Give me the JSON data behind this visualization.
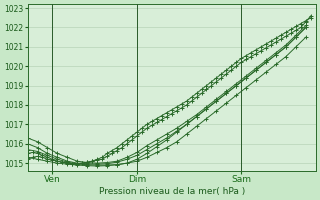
{
  "title": "",
  "xlabel": "Pression niveau de la mer( hPa )",
  "bg_color": "#c8e8c8",
  "plot_bg_color": "#d8eed8",
  "grid_color": "#b0ccb0",
  "line_color": "#2a6a2a",
  "marker_color": "#2a6a2a",
  "ylim": [
    1014.6,
    1023.2
  ],
  "yticks": [
    1015,
    1016,
    1017,
    1018,
    1019,
    1020,
    1021,
    1022,
    1023
  ],
  "xtick_labels": [
    "Ven",
    "Dim",
    "Sam"
  ],
  "vline_x": [
    5,
    22,
    43
  ],
  "xlim": [
    0,
    58
  ],
  "xtick_x": [
    5,
    22,
    43
  ],
  "series": [
    {
      "x": [
        0,
        1,
        2,
        3,
        4,
        5,
        6,
        7,
        8,
        9,
        10,
        11,
        12,
        13,
        14,
        15,
        16,
        17,
        18,
        19,
        20,
        21,
        22,
        23,
        24,
        25,
        26,
        27,
        28,
        29,
        30,
        31,
        32,
        33,
        34,
        35,
        36,
        37,
        38,
        39,
        40,
        41,
        42,
        43,
        44,
        45,
        46,
        47,
        48,
        49,
        50,
        51,
        52,
        53,
        54,
        55,
        56,
        57
      ],
      "y": [
        1015.2,
        1015.3,
        1015.35,
        1015.3,
        1015.2,
        1015.15,
        1015.1,
        1015.05,
        1015.0,
        1014.98,
        1014.97,
        1015.0,
        1015.05,
        1015.1,
        1015.2,
        1015.3,
        1015.5,
        1015.65,
        1015.8,
        1016.0,
        1016.2,
        1016.4,
        1016.6,
        1016.8,
        1017.0,
        1017.15,
        1017.3,
        1017.45,
        1017.6,
        1017.75,
        1017.9,
        1018.05,
        1018.2,
        1018.4,
        1018.6,
        1018.8,
        1019.0,
        1019.2,
        1019.4,
        1019.6,
        1019.8,
        1020.0,
        1020.2,
        1020.4,
        1020.55,
        1020.7,
        1020.85,
        1021.0,
        1021.15,
        1021.3,
        1021.45,
        1021.6,
        1021.75,
        1021.9,
        1022.05,
        1022.2,
        1022.35,
        1022.5
      ],
      "marker": "+"
    },
    {
      "x": [
        0,
        1,
        2,
        3,
        4,
        5,
        6,
        7,
        8,
        9,
        10,
        11,
        12,
        13,
        14,
        15,
        16,
        17,
        18,
        19,
        20,
        21,
        22,
        23,
        24,
        25,
        26,
        27,
        28,
        29,
        30,
        31,
        32,
        33,
        34,
        35,
        36,
        37,
        38,
        39,
        40,
        41,
        42,
        43,
        44,
        45,
        46,
        47,
        48,
        49,
        50,
        51,
        52,
        53,
        54,
        55,
        56,
        57
      ],
      "y": [
        1015.5,
        1015.55,
        1015.5,
        1015.4,
        1015.3,
        1015.2,
        1015.1,
        1015.05,
        1015.0,
        1014.98,
        1014.97,
        1015.0,
        1015.05,
        1015.1,
        1015.15,
        1015.2,
        1015.35,
        1015.5,
        1015.65,
        1015.8,
        1016.0,
        1016.2,
        1016.4,
        1016.6,
        1016.8,
        1016.95,
        1017.1,
        1017.25,
        1017.4,
        1017.55,
        1017.7,
        1017.85,
        1018.0,
        1018.2,
        1018.4,
        1018.6,
        1018.8,
        1019.0,
        1019.2,
        1019.4,
        1019.6,
        1019.8,
        1020.0,
        1020.2,
        1020.35,
        1020.5,
        1020.65,
        1020.8,
        1020.95,
        1021.1,
        1021.25,
        1021.4,
        1021.55,
        1021.7,
        1021.85,
        1022.0,
        1022.3,
        1022.6
      ],
      "marker": "+"
    },
    {
      "x": [
        0,
        2,
        4,
        6,
        8,
        10,
        12,
        14,
        16,
        18,
        20,
        22,
        24,
        26,
        28,
        30,
        32,
        34,
        36,
        38,
        40,
        42,
        44,
        46,
        48,
        50,
        52,
        54,
        56
      ],
      "y": [
        1015.7,
        1015.6,
        1015.4,
        1015.2,
        1015.05,
        1014.95,
        1014.92,
        1014.9,
        1014.9,
        1014.92,
        1015.0,
        1015.1,
        1015.3,
        1015.55,
        1015.8,
        1016.1,
        1016.5,
        1016.9,
        1017.3,
        1017.7,
        1018.1,
        1018.5,
        1018.9,
        1019.3,
        1019.7,
        1020.1,
        1020.5,
        1021.0,
        1021.5
      ],
      "marker": "+"
    },
    {
      "x": [
        0,
        2,
        4,
        6,
        8,
        10,
        12,
        14,
        16,
        18,
        20,
        22,
        24,
        26,
        28,
        30,
        32,
        34,
        36,
        38,
        40,
        42,
        44,
        46,
        48,
        50,
        52,
        54,
        56
      ],
      "y": [
        1015.3,
        1015.2,
        1015.1,
        1015.0,
        1014.95,
        1014.9,
        1014.87,
        1014.85,
        1014.87,
        1014.92,
        1015.0,
        1015.2,
        1015.5,
        1015.85,
        1016.2,
        1016.6,
        1017.0,
        1017.4,
        1017.8,
        1018.2,
        1018.6,
        1019.0,
        1019.4,
        1019.8,
        1020.2,
        1020.6,
        1021.0,
        1021.5,
        1022.0
      ],
      "marker": "+"
    },
    {
      "x": [
        0,
        2,
        4,
        6,
        8,
        10,
        12,
        14,
        16,
        18,
        20,
        22,
        24,
        26,
        28,
        30,
        32,
        34,
        36,
        38,
        40,
        42,
        44,
        46,
        48,
        50,
        52,
        54,
        56
      ],
      "y": [
        1016.0,
        1015.8,
        1015.5,
        1015.3,
        1015.1,
        1015.0,
        1014.97,
        1014.95,
        1014.97,
        1015.05,
        1015.2,
        1015.4,
        1015.7,
        1016.0,
        1016.3,
        1016.65,
        1017.0,
        1017.4,
        1017.8,
        1018.2,
        1018.6,
        1019.0,
        1019.4,
        1019.8,
        1020.2,
        1020.6,
        1021.0,
        1021.5,
        1022.0
      ],
      "marker": "+"
    },
    {
      "x": [
        0,
        2,
        4,
        6,
        8,
        10,
        12,
        14,
        16,
        18,
        20,
        22,
        24,
        26,
        28,
        30,
        32,
        34,
        36,
        38,
        40,
        42,
        44,
        46,
        48,
        50,
        52,
        54,
        56
      ],
      "y": [
        1016.3,
        1016.1,
        1015.8,
        1015.5,
        1015.3,
        1015.1,
        1015.03,
        1015.0,
        1015.03,
        1015.1,
        1015.3,
        1015.55,
        1015.9,
        1016.2,
        1016.5,
        1016.8,
        1017.15,
        1017.5,
        1017.9,
        1018.3,
        1018.7,
        1019.1,
        1019.5,
        1019.9,
        1020.3,
        1020.7,
        1021.1,
        1021.6,
        1022.1
      ],
      "marker": "+"
    }
  ]
}
